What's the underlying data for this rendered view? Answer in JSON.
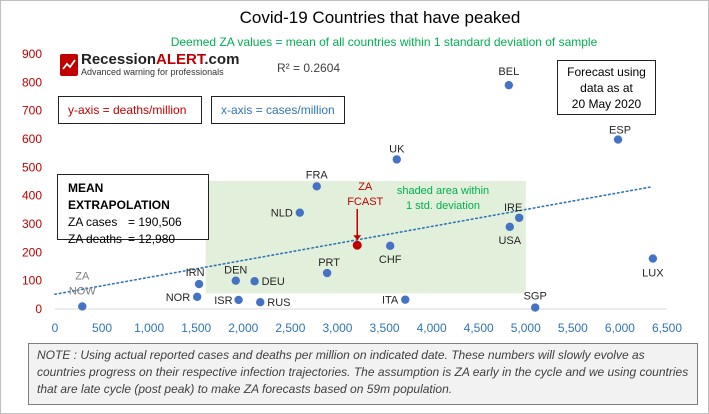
{
  "chart_data": {
    "type": "scatter",
    "title": "Covid-19 Countries that have peaked",
    "subtitle": "Deemed ZA values = mean of all countries within 1 standard deviation of sample",
    "xlabel": "",
    "ylabel": "",
    "xlim": [
      0,
      6500
    ],
    "ylim": [
      0,
      900
    ],
    "x_ticks": [
      0,
      500,
      1000,
      1500,
      2000,
      2500,
      3000,
      3500,
      4000,
      4500,
      5000,
      5500,
      6000,
      6500
    ],
    "x_tick_labels": [
      "0",
      "500",
      "1,000",
      "1,500",
      "2,000",
      "2,500",
      "3,000",
      "3,500",
      "4,000",
      "4,500",
      "5,000",
      "5,500",
      "6,000",
      "6,500"
    ],
    "y_ticks": [
      0,
      100,
      200,
      300,
      400,
      500,
      600,
      700,
      800,
      900
    ],
    "y_tick_labels": [
      "0",
      "100",
      "200",
      "300",
      "400",
      "500",
      "600",
      "700",
      "800",
      "900"
    ],
    "grid": false,
    "points": [
      {
        "label": "BEL",
        "x": 4820,
        "y": 790
      },
      {
        "label": "ESP",
        "x": 5980,
        "y": 598
      },
      {
        "label": "UK",
        "x": 3630,
        "y": 528
      },
      {
        "label": "FRA",
        "x": 2780,
        "y": 433
      },
      {
        "label": "NLD",
        "x": 2600,
        "y": 340
      },
      {
        "label": "IRE",
        "x": 4930,
        "y": 322
      },
      {
        "label": "USA",
        "x": 4830,
        "y": 290
      },
      {
        "label": "CHF",
        "x": 3560,
        "y": 223
      },
      {
        "label": "LUX",
        "x": 6350,
        "y": 178
      },
      {
        "label": "PRT",
        "x": 2890,
        "y": 127
      },
      {
        "label": "DEN",
        "x": 1920,
        "y": 100
      },
      {
        "label": "DEU",
        "x": 2120,
        "y": 98
      },
      {
        "label": "IRN",
        "x": 1530,
        "y": 88
      },
      {
        "label": "NOR",
        "x": 1510,
        "y": 43
      },
      {
        "label": "ISR",
        "x": 1950,
        "y": 32
      },
      {
        "label": "RUS",
        "x": 2180,
        "y": 24
      },
      {
        "label": "ITA",
        "x": 3720,
        "y": 33
      },
      {
        "label": "SGP",
        "x": 5100,
        "y": 5
      },
      {
        "label": "ZA NOW",
        "x": 290,
        "y": 9
      }
    ],
    "forecast_point": {
      "label": "ZA FCAST",
      "x": 3210,
      "y": 225
    },
    "trendline": {
      "r_squared_label": "R² = 0.2604",
      "x0": 0,
      "y0": 52,
      "x1": 6350,
      "y1": 432
    },
    "shaded_area": {
      "x_min": 1600,
      "x_max": 5000,
      "y_min": 55,
      "y_max": 452,
      "label": "shaded area within 1 std. deviation"
    },
    "colors": {
      "point": "#4472c4",
      "forecast": "#c00000",
      "trend": "#2e75b6",
      "shade": "#e2efda",
      "y_axis_text": "#c00000",
      "x_axis_text": "#2e75b6",
      "title": "#000000",
      "subtitle": "#00b050"
    }
  },
  "annotations": {
    "y_axis_box": "y-axis = deaths/million",
    "x_axis_box": "x-axis = cases/million",
    "forecast_box": [
      "Forecast using",
      "data as at",
      "20 May 2020"
    ],
    "mean_box": {
      "title": "MEAN EXTRAPOLATION",
      "cases_label": "ZA cases",
      "cases_value": "= 190,506",
      "deaths_label": "ZA deaths",
      "deaths_value": "= 12,980"
    },
    "shaded_text": [
      "shaded area within",
      "1 std. deviation"
    ],
    "forecast_text": [
      "ZA",
      "FCAST"
    ],
    "now_text": [
      "ZA",
      "NOW"
    ]
  },
  "logo": {
    "name_dark": "Recession",
    "name_red": "ALERT",
    "domain": ".com",
    "tagline": "Advanced warning for professionals"
  },
  "note": "NOTE : Using actual reported cases and deaths per million on indicated date. These numbers will slowly evolve  as countries progress on their respective infection trajectories. The assumption is ZA early in the cycle and we using countries that are late cycle (post peak) to make ZA forecasts based on 59m population."
}
